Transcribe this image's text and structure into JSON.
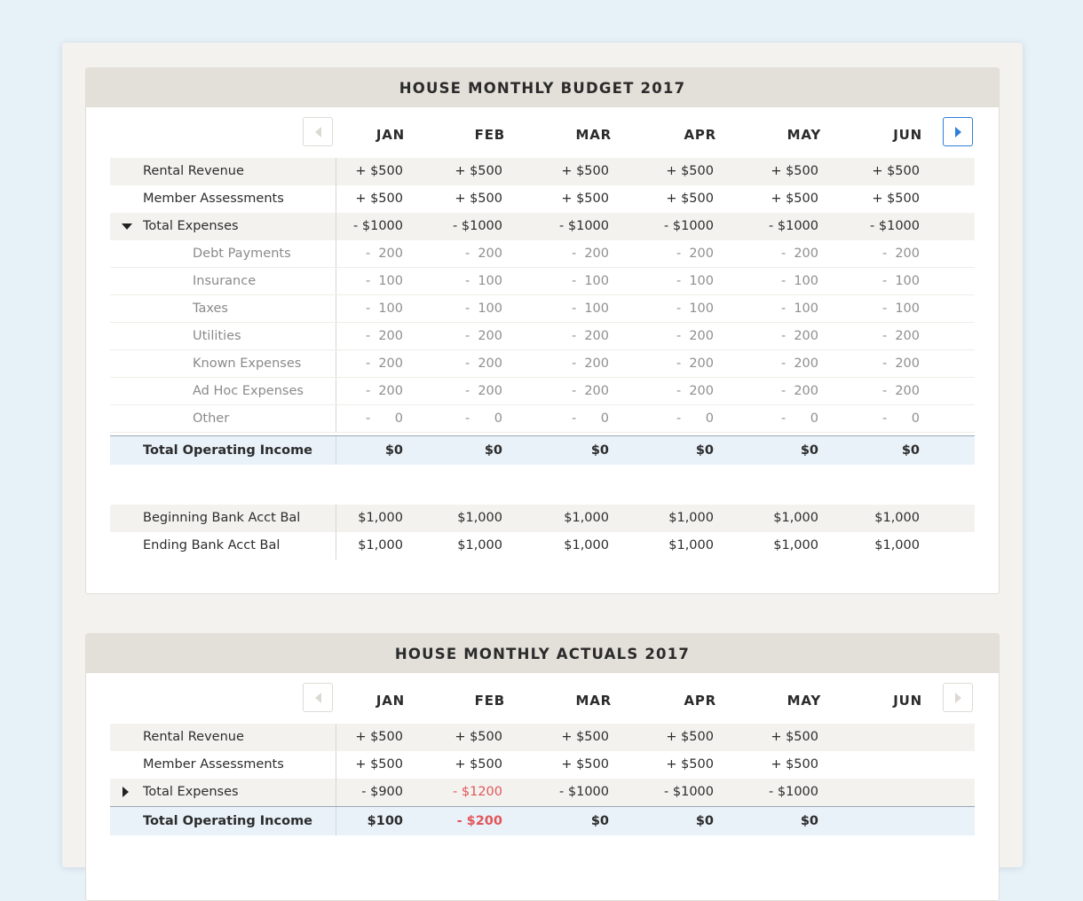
{
  "budget": {
    "title": "HOUSE MONTHLY BUDGET 2017",
    "months": [
      "JAN",
      "FEB",
      "MAR",
      "APR",
      "MAY",
      "JUN"
    ],
    "rows": [
      {
        "label": "Rental Revenue",
        "values": [
          "+ $500",
          "+ $500",
          "+ $500",
          "+ $500",
          "+ $500",
          "+ $500"
        ]
      },
      {
        "label": "Member Assessments",
        "values": [
          "+ $500",
          "+ $500",
          "+ $500",
          "+ $500",
          "+ $500",
          "+ $500"
        ]
      },
      {
        "label": "Total Expenses",
        "values": [
          "- $1000",
          "- $1000",
          "- $1000",
          "- $1000",
          "- $1000",
          "- $1000"
        ]
      }
    ],
    "sub_rows": [
      {
        "label": "Debt Payments",
        "sign": "-",
        "values": [
          "200",
          "200",
          "200",
          "200",
          "200",
          "200"
        ]
      },
      {
        "label": "Insurance",
        "sign": "-",
        "values": [
          "100",
          "100",
          "100",
          "100",
          "100",
          "100"
        ]
      },
      {
        "label": "Taxes",
        "sign": "-",
        "values": [
          "100",
          "100",
          "100",
          "100",
          "100",
          "100"
        ]
      },
      {
        "label": "Utilities",
        "sign": "-",
        "values": [
          "200",
          "200",
          "200",
          "200",
          "200",
          "200"
        ]
      },
      {
        "label": "Known Expenses",
        "sign": "-",
        "values": [
          "200",
          "200",
          "200",
          "200",
          "200",
          "200"
        ]
      },
      {
        "label": "Ad Hoc Expenses",
        "sign": "-",
        "values": [
          "200",
          "200",
          "200",
          "200",
          "200",
          "200"
        ]
      },
      {
        "label": "Other",
        "sign": "-",
        "values": [
          "0",
          "0",
          "0",
          "0",
          "0",
          "0"
        ]
      }
    ],
    "total": {
      "label": "Total Operating Income",
      "values": [
        "$0",
        "$0",
        "$0",
        "$0",
        "$0",
        "$0"
      ]
    },
    "bank": [
      {
        "label": "Beginning Bank Acct Bal",
        "values": [
          "$1,000",
          "$1,000",
          "$1,000",
          "$1,000",
          "$1,000",
          "$1,000"
        ]
      },
      {
        "label": "Ending Bank Acct Bal",
        "values": [
          "$1,000",
          "$1,000",
          "$1,000",
          "$1,000",
          "$1,000",
          "$1,000"
        ]
      }
    ]
  },
  "actuals": {
    "title": "HOUSE MONTHLY ACTUALS 2017",
    "months": [
      "JAN",
      "FEB",
      "MAR",
      "APR",
      "MAY",
      "JUN"
    ],
    "rows": [
      {
        "label": "Rental Revenue",
        "values": [
          "+ $500",
          "+ $500",
          "+ $500",
          "+ $500",
          "+ $500",
          ""
        ]
      },
      {
        "label": "Member Assessments",
        "values": [
          "+ $500",
          "+ $500",
          "+ $500",
          "+ $500",
          "+ $500",
          ""
        ]
      },
      {
        "label": "Total Expenses",
        "values": [
          "- $900",
          "- $1200",
          "- $1000",
          "- $1000",
          "- $1000",
          ""
        ]
      }
    ],
    "total": {
      "label": "Total Operating Income",
      "values": [
        "$100",
        "- $200",
        "$0",
        "$0",
        "$0",
        ""
      ]
    }
  },
  "icons": {
    "prev": "chevron-left-icon",
    "next": "chevron-right-icon",
    "expanded": "caret-down-icon",
    "collapsed": "caret-right-icon"
  },
  "colors": {
    "accent": "#2f7fd6",
    "negative": "#e0575b",
    "header_bg": "#e3e0da",
    "row_shade": "#f3f2ee",
    "total_bg": "#e9f1f9"
  }
}
